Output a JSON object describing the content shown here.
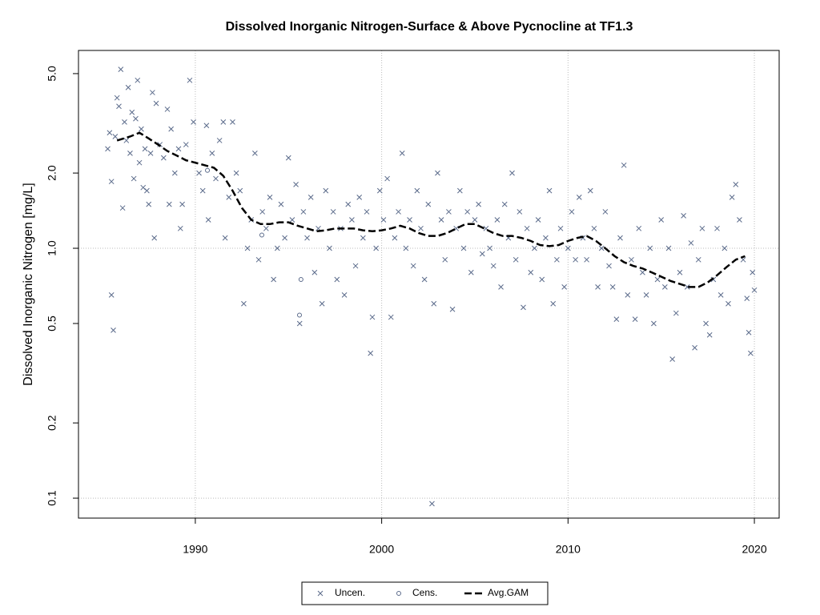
{
  "chart_data": {
    "type": "scatter",
    "title": "Dissolved Inorganic Nitrogen-Surface & Above Pycnocline at TF1.3",
    "y_label": "Dissolved Inorganic Nitrogen [mg/L]",
    "log_y": true,
    "xlim": [
      1983.73,
      2021.33
    ],
    "xticks": [
      1990,
      2000,
      2010,
      2020
    ],
    "ylim": [
      0.0832,
      6.19
    ],
    "yticks": [
      0.1,
      0.2,
      0.5,
      {
        "value": 1,
        "label": "1.0"
      },
      {
        "value": 2,
        "label": "2.0"
      },
      {
        "value": 5,
        "label": "5.0"
      }
    ],
    "y_gridlines": [
      0.1,
      1
    ],
    "legend_position": "bottom",
    "series": [
      {
        "name": "Uncen.",
        "color": "#5a6a8a",
        "marker": "x",
        "x": [
          1985.3,
          1985.4,
          1985.5,
          1985.5,
          1985.6,
          1985.7,
          1985.8,
          1985.9,
          1986.0,
          1986.1,
          1986.2,
          1986.3,
          1986.4,
          1986.5,
          1986.6,
          1986.7,
          1986.8,
          1986.9,
          1987.0,
          1987.1,
          1987.2,
          1987.3,
          1987.4,
          1987.5,
          1987.6,
          1987.7,
          1987.8,
          1987.9,
          1988.1,
          1988.3,
          1988.5,
          1988.6,
          1988.7,
          1988.9,
          1989.1,
          1989.2,
          1989.3,
          1989.5,
          1989.7,
          1989.9,
          1990.2,
          1990.4,
          1990.6,
          1990.7,
          1990.9,
          1991.1,
          1991.3,
          1991.5,
          1991.6,
          1991.8,
          1992.0,
          1992.2,
          1992.4,
          1992.6,
          1992.8,
          1993.0,
          1993.2,
          1993.4,
          1993.6,
          1993.8,
          1994.0,
          1994.2,
          1994.4,
          1994.6,
          1994.8,
          1995.0,
          1995.2,
          1995.4,
          1995.6,
          1995.8,
          1996.0,
          1996.2,
          1996.4,
          1996.6,
          1996.8,
          1997.0,
          1997.2,
          1997.4,
          1997.6,
          1997.8,
          1998.0,
          1998.2,
          1998.4,
          1998.6,
          1998.8,
          1999.0,
          1999.2,
          1999.4,
          1999.5,
          1999.7,
          1999.9,
          2000.1,
          2000.3,
          2000.5,
          2000.7,
          2000.9,
          2001.1,
          2001.3,
          2001.5,
          2001.7,
          2001.9,
          2002.1,
          2002.3,
          2002.5,
          2002.7,
          2002.8,
          2003.0,
          2003.2,
          2003.4,
          2003.6,
          2003.8,
          2004.0,
          2004.2,
          2004.4,
          2004.6,
          2004.8,
          2005.0,
          2005.2,
          2005.4,
          2005.6,
          2005.8,
          2006.0,
          2006.2,
          2006.4,
          2006.6,
          2006.8,
          2007.0,
          2007.2,
          2007.4,
          2007.6,
          2007.8,
          2008.0,
          2008.2,
          2008.4,
          2008.6,
          2008.8,
          2009.0,
          2009.2,
          2009.4,
          2009.6,
          2009.8,
          2010.0,
          2010.2,
          2010.4,
          2010.6,
          2010.8,
          2011.0,
          2011.2,
          2011.4,
          2011.6,
          2011.8,
          2012.0,
          2012.2,
          2012.4,
          2012.6,
          2012.8,
          2013.0,
          2013.2,
          2013.4,
          2013.6,
          2013.8,
          2014.0,
          2014.2,
          2014.4,
          2014.6,
          2014.8,
          2015.0,
          2015.2,
          2015.4,
          2015.6,
          2015.8,
          2016.0,
          2016.2,
          2016.4,
          2016.6,
          2016.8,
          2017.0,
          2017.2,
          2017.4,
          2017.6,
          2017.8,
          2018.0,
          2018.2,
          2018.4,
          2018.6,
          2018.8,
          2019.0,
          2019.2,
          2019.4,
          2019.6,
          2019.7,
          2019.8,
          2019.9,
          2020.0
        ],
        "values": [
          2.5,
          2.9,
          1.85,
          0.65,
          0.47,
          2.8,
          4.0,
          3.7,
          5.2,
          1.45,
          3.2,
          2.7,
          4.4,
          2.4,
          3.5,
          1.9,
          3.3,
          4.7,
          2.2,
          3.0,
          1.75,
          2.5,
          1.7,
          1.5,
          2.4,
          4.2,
          1.1,
          3.8,
          2.6,
          2.3,
          3.6,
          1.5,
          3.0,
          2.0,
          2.5,
          1.2,
          1.5,
          2.6,
          4.7,
          3.2,
          2.0,
          1.7,
          3.1,
          1.3,
          2.4,
          1.9,
          2.7,
          3.2,
          1.1,
          1.6,
          3.2,
          2.0,
          1.7,
          0.6,
          1.0,
          1.3,
          2.4,
          0.9,
          1.4,
          1.2,
          1.6,
          0.75,
          1.0,
          1.5,
          1.1,
          2.3,
          1.3,
          1.8,
          0.5,
          1.4,
          1.1,
          1.6,
          0.8,
          1.2,
          0.6,
          1.7,
          1.0,
          1.4,
          0.75,
          1.2,
          0.65,
          1.5,
          1.3,
          0.85,
          1.6,
          1.1,
          1.4,
          0.38,
          0.53,
          1.0,
          1.7,
          1.3,
          1.9,
          0.53,
          1.1,
          1.4,
          2.4,
          1.0,
          1.3,
          0.85,
          1.7,
          1.2,
          0.75,
          1.5,
          0.095,
          0.6,
          2.0,
          1.3,
          0.9,
          1.4,
          0.57,
          1.2,
          1.7,
          1.0,
          1.4,
          0.8,
          1.3,
          1.5,
          0.95,
          1.2,
          1.0,
          0.85,
          1.3,
          0.7,
          1.5,
          1.1,
          2.0,
          0.9,
          1.4,
          0.58,
          1.2,
          0.8,
          1.0,
          1.3,
          0.75,
          1.1,
          1.7,
          0.6,
          0.9,
          1.2,
          0.7,
          1.0,
          1.4,
          0.9,
          1.6,
          1.1,
          0.9,
          1.7,
          1.2,
          0.7,
          1.0,
          1.4,
          0.85,
          0.7,
          0.52,
          1.1,
          2.15,
          0.65,
          0.9,
          0.52,
          1.2,
          0.8,
          0.65,
          1.0,
          0.5,
          0.75,
          1.3,
          0.7,
          1.0,
          0.36,
          0.55,
          0.8,
          1.35,
          0.7,
          1.05,
          0.4,
          0.9,
          1.2,
          0.5,
          0.45,
          0.75,
          1.2,
          0.65,
          1.0,
          0.6,
          1.6,
          1.8,
          1.3,
          0.9,
          0.63,
          0.46,
          0.38,
          0.8,
          0.68
        ]
      },
      {
        "name": "Cens.",
        "color": "#5a6a8a",
        "marker": "o",
        "x": [
          1990.65,
          1993.57,
          1995.67,
          1995.59
        ],
        "values": [
          2.05,
          1.13,
          0.75,
          0.54
        ]
      },
      {
        "name": "Avg.GAM",
        "color": "#000000",
        "marker": "dashed-line",
        "x": [
          1985.8,
          1986.5,
          1987.0,
          1987.5,
          1988,
          1988.5,
          1989,
          1989.5,
          1990,
          1990.5,
          1991,
          1991.5,
          1992,
          1992.5,
          1993,
          1993.5,
          1994,
          1994.5,
          1995,
          1995.5,
          1996,
          1996.5,
          1997,
          1997.5,
          1998,
          1998.5,
          1999,
          1999.5,
          2000,
          2000.5,
          2001,
          2001.5,
          2002,
          2002.5,
          2003,
          2003.5,
          2004,
          2004.5,
          2005,
          2005.5,
          2006,
          2006.5,
          2007,
          2007.5,
          2008,
          2008.5,
          2009,
          2009.5,
          2010,
          2010.5,
          2011,
          2011.5,
          2012,
          2012.5,
          2013,
          2013.5,
          2014,
          2014.5,
          2015,
          2015.5,
          2016,
          2016.5,
          2017,
          2017.5,
          2018,
          2018.5,
          2019,
          2019.5
        ],
        "values": [
          2.7,
          2.8,
          2.9,
          2.75,
          2.6,
          2.45,
          2.35,
          2.25,
          2.2,
          2.15,
          2.1,
          1.95,
          1.7,
          1.45,
          1.3,
          1.25,
          1.25,
          1.27,
          1.27,
          1.23,
          1.2,
          1.17,
          1.18,
          1.2,
          1.2,
          1.2,
          1.18,
          1.17,
          1.18,
          1.2,
          1.23,
          1.2,
          1.15,
          1.12,
          1.12,
          1.15,
          1.2,
          1.25,
          1.25,
          1.2,
          1.15,
          1.12,
          1.12,
          1.1,
          1.07,
          1.03,
          1.02,
          1.03,
          1.07,
          1.1,
          1.12,
          1.07,
          1.0,
          0.93,
          0.88,
          0.85,
          0.83,
          0.8,
          0.77,
          0.74,
          0.72,
          0.7,
          0.7,
          0.73,
          0.78,
          0.84,
          0.9,
          0.93
        ]
      }
    ]
  }
}
